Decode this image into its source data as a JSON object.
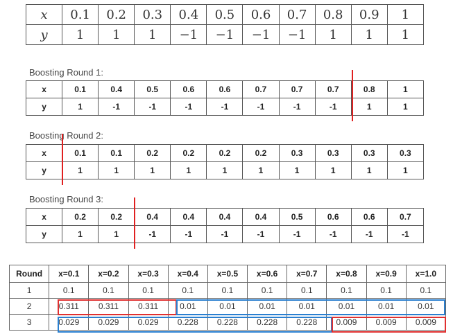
{
  "data_table": {
    "x_label": "x",
    "y_label": "y",
    "x": [
      "0.1",
      "0.2",
      "0.3",
      "0.4",
      "0.5",
      "0.6",
      "0.7",
      "0.8",
      "0.9",
      "1"
    ],
    "y": [
      "1",
      "1",
      "1",
      "−1",
      "−1",
      "−1",
      "−1",
      "1",
      "1",
      "1"
    ]
  },
  "rounds": [
    {
      "title": "Boosting Round 1:",
      "x": [
        "0.1",
        "0.4",
        "0.5",
        "0.6",
        "0.6",
        "0.7",
        "0.7",
        "0.7",
        "0.8",
        "1"
      ],
      "y": [
        "1",
        "-1",
        "-1",
        "-1",
        "-1",
        "-1",
        "-1",
        "-1",
        "1",
        "1"
      ]
    },
    {
      "title": "Boosting Round 2:",
      "x": [
        "0.1",
        "0.1",
        "0.2",
        "0.2",
        "0.2",
        "0.2",
        "0.3",
        "0.3",
        "0.3",
        "0.3"
      ],
      "y": [
        "1",
        "1",
        "1",
        "1",
        "1",
        "1",
        "1",
        "1",
        "1",
        "1"
      ]
    },
    {
      "title": "Boosting Round 3:",
      "x": [
        "0.2",
        "0.2",
        "0.4",
        "0.4",
        "0.4",
        "0.4",
        "0.5",
        "0.6",
        "0.6",
        "0.7"
      ],
      "y": [
        "1",
        "1",
        "-1",
        "-1",
        "-1",
        "-1",
        "-1",
        "-1",
        "-1",
        "-1"
      ]
    }
  ],
  "weights": {
    "headers": [
      "Round",
      "x=0.1",
      "x=0.2",
      "x=0.3",
      "x=0.4",
      "x=0.5",
      "x=0.6",
      "x=0.7",
      "x=0.8",
      "x=0.9",
      "x=1.0"
    ],
    "rows": [
      [
        "1",
        "0.1",
        "0.1",
        "0.1",
        "0.1",
        "0.1",
        "0.1",
        "0.1",
        "0.1",
        "0.1",
        "0.1"
      ],
      [
        "2",
        "0.311",
        "0.311",
        "0.311",
        "0.01",
        "0.01",
        "0.01",
        "0.01",
        "0.01",
        "0.01",
        "0.01"
      ],
      [
        "3",
        "0.029",
        "0.029",
        "0.029",
        "0.228",
        "0.228",
        "0.228",
        "0.228",
        "0.009",
        "0.009",
        "0.009"
      ]
    ]
  },
  "colors": {
    "split_line": "#e02020",
    "highlight_red": "#e03030",
    "highlight_blue": "#2a7fd0"
  }
}
